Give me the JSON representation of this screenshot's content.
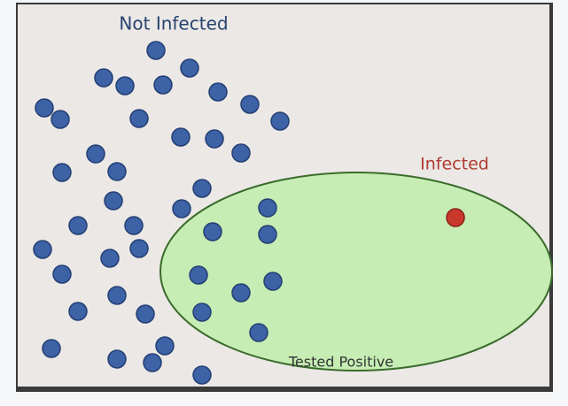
{
  "labels": {
    "not_infected": "Not Infected",
    "infected": "Infected",
    "tested_positive": "Tested Positive"
  }
}
